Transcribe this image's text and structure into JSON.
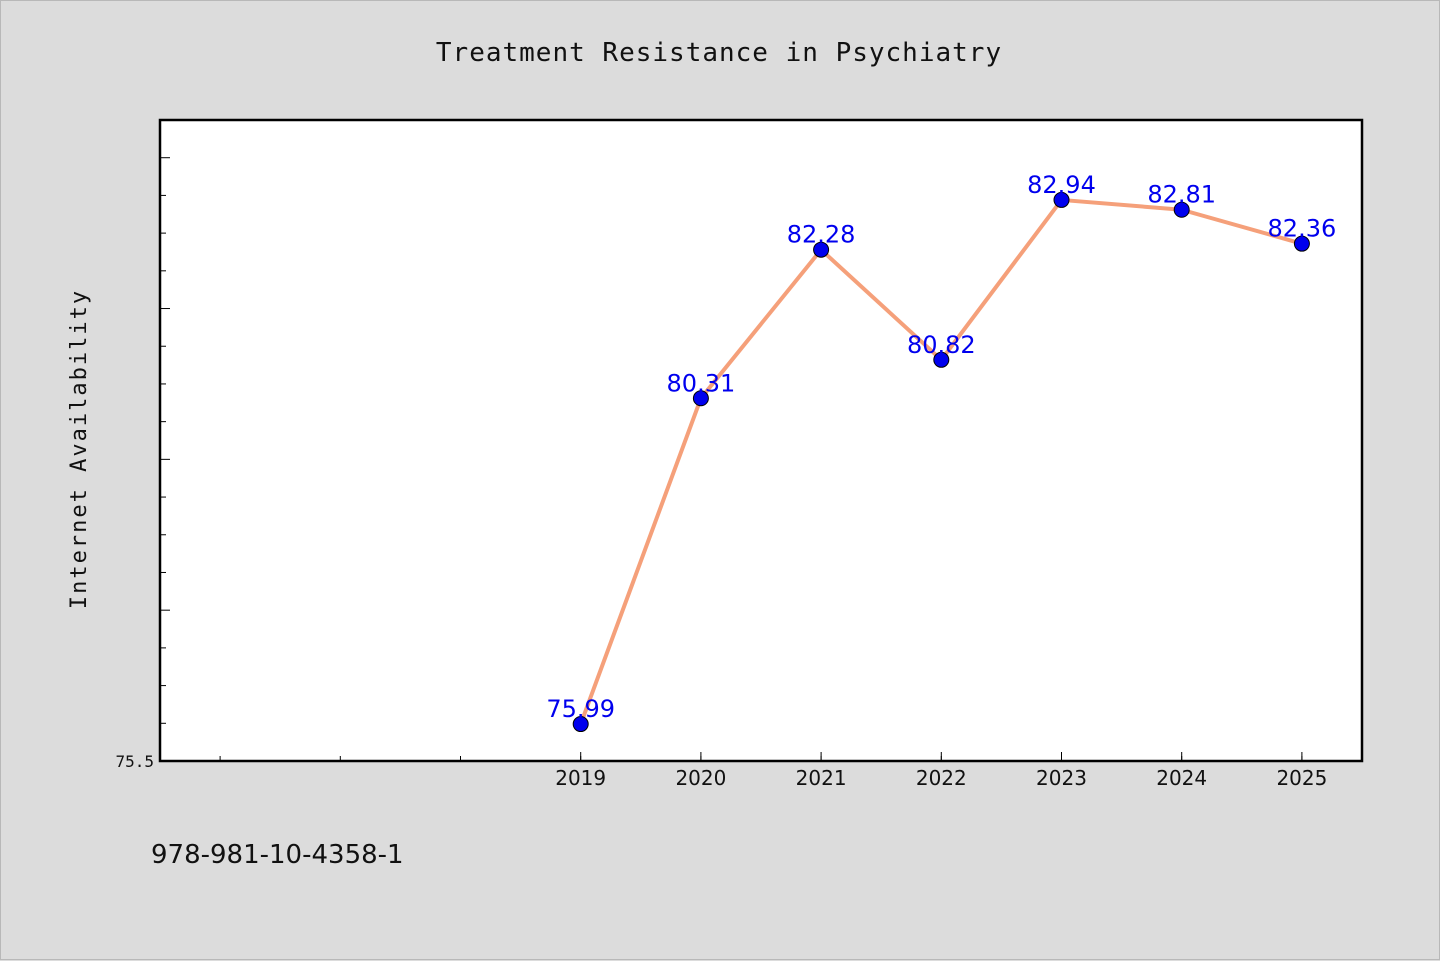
{
  "chart_data": {
    "type": "line",
    "title": "Treatment Resistance in Psychiatry",
    "xlabel": "",
    "ylabel": "Internet Availability",
    "categories": [
      "2019",
      "2020",
      "2021",
      "2022",
      "2023",
      "2024",
      "2025"
    ],
    "series": [
      {
        "values": [
          75.99,
          80.31,
          82.28,
          80.82,
          82.94,
          82.81,
          82.36
        ],
        "labels": [
          "75.99",
          "80.31",
          "82.28",
          "80.82",
          "82.94",
          "82.81",
          "82.36"
        ]
      }
    ],
    "ylim": [
      75.5,
      84.0
    ],
    "yticks_labeled": [
      "75.5"
    ],
    "xlim": [
      2015.5,
      2025.5
    ],
    "grid": false,
    "legend": "none",
    "colors": {
      "line": "#f5a07a",
      "marker": "#0000ee",
      "data_label": "#0000ee",
      "background": "#dcdcdc",
      "plot_area": "#ffffff"
    }
  },
  "footer": {
    "isbn": "978-981-10-4358-1"
  }
}
